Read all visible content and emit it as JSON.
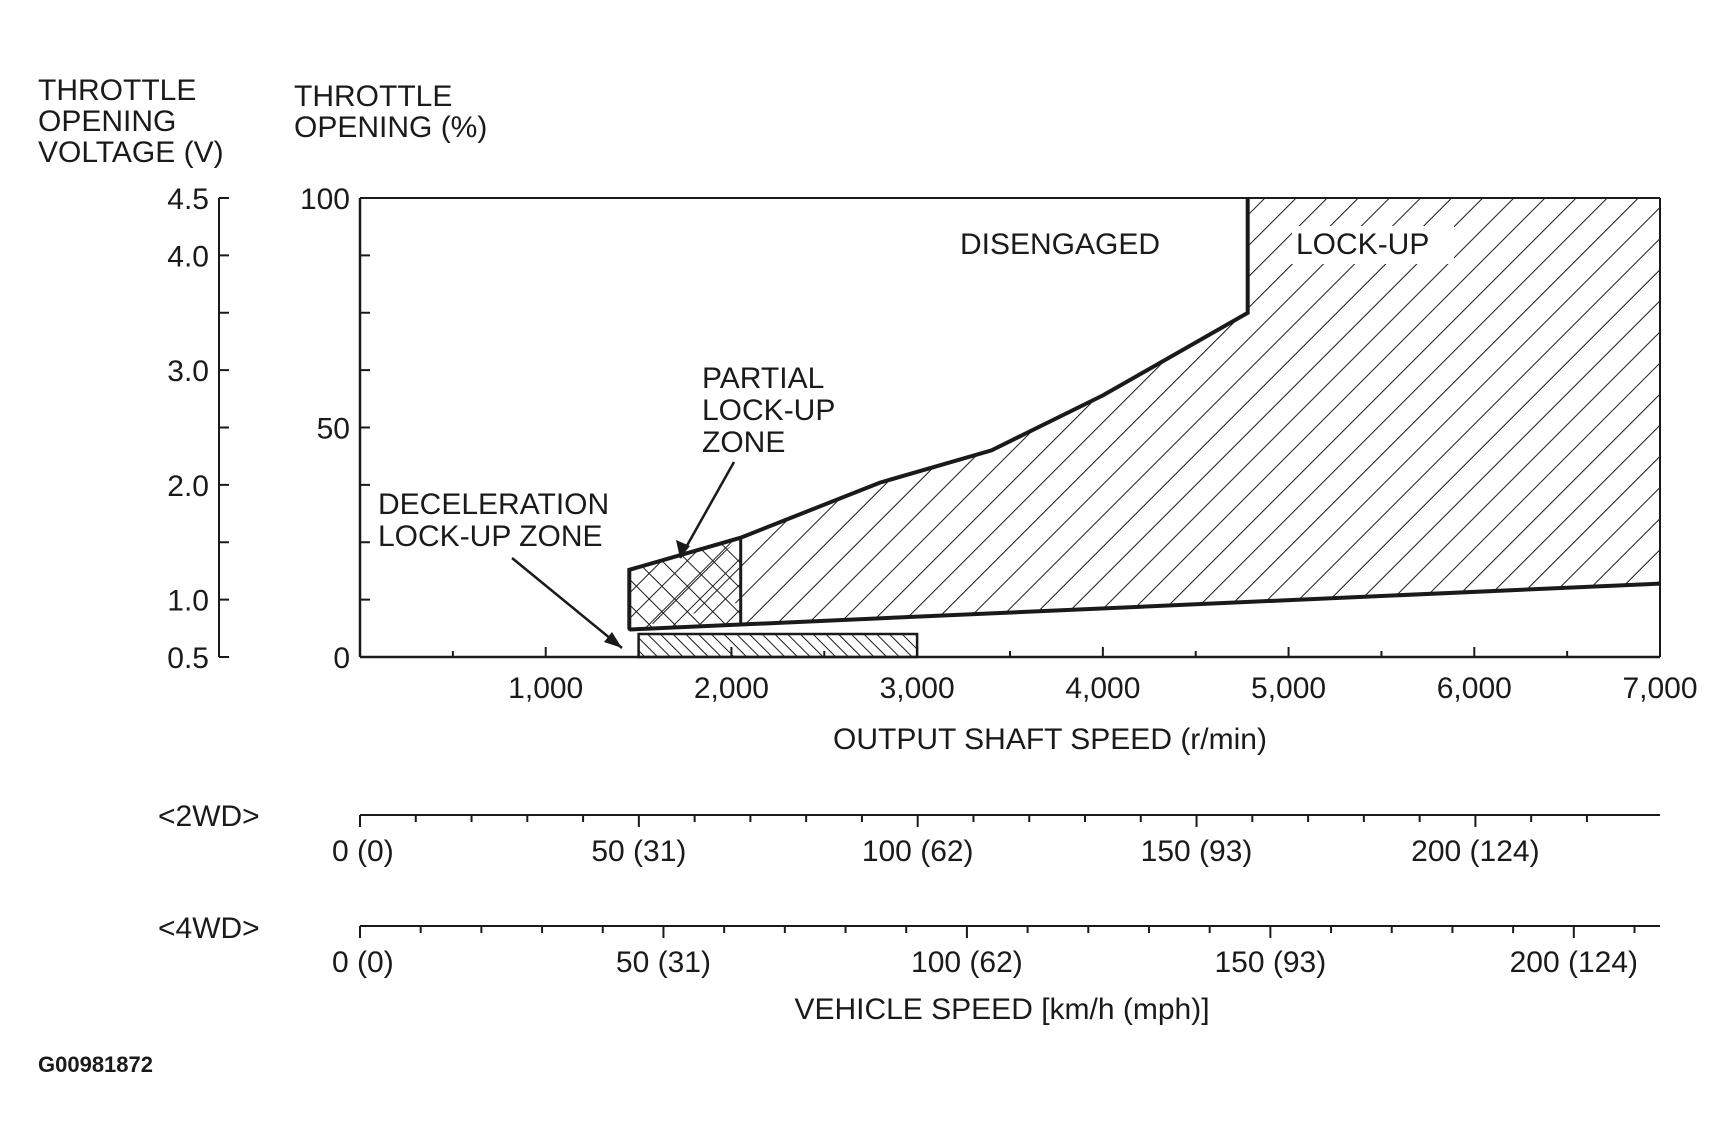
{
  "chart_data": {
    "type": "area",
    "title": "",
    "left_axis_label": [
      "THROTTLE",
      "OPENING",
      "VOLTAGE (V)"
    ],
    "y_axis_label": [
      "THROTTLE",
      "OPENING (%)"
    ],
    "x_axis_label": "OUTPUT SHAFT SPEED (r/min)",
    "xlim": [
      0,
      7000
    ],
    "ylim": [
      0,
      100
    ],
    "x_ticks": [
      {
        "value": 1000,
        "label": "1,000"
      },
      {
        "value": 2000,
        "label": "2,000"
      },
      {
        "value": 3000,
        "label": "3,000"
      },
      {
        "value": 4000,
        "label": "4,000"
      },
      {
        "value": 5000,
        "label": "5,000"
      },
      {
        "value": 6000,
        "label": "6,000"
      },
      {
        "value": 7000,
        "label": "7,000"
      }
    ],
    "y_ticks": [
      {
        "value": 0,
        "label": "0"
      },
      {
        "value": 50,
        "label": "50"
      },
      {
        "value": 100,
        "label": "100"
      }
    ],
    "voltage_ticks": [
      {
        "value": 0.5,
        "label": "0.5",
        "at_percent": 0
      },
      {
        "value": 1.0,
        "label": "1.0",
        "at_percent": 12.5
      },
      {
        "value": 2.0,
        "label": "2.0",
        "at_percent": 37.5
      },
      {
        "value": 3.0,
        "label": "3.0",
        "at_percent": 62.5
      },
      {
        "value": 4.0,
        "label": "4.0",
        "at_percent": 87.5
      },
      {
        "value": 4.5,
        "label": "4.5",
        "at_percent": 100
      }
    ],
    "regions": [
      {
        "name": "LOCK-UP",
        "pattern": "diagonal",
        "polygon": [
          [
            2050,
            12
          ],
          [
            1450,
            6
          ],
          [
            1450,
            6
          ],
          [
            2050,
            26
          ],
          [
            2800,
            38
          ],
          [
            3400,
            45
          ],
          [
            4000,
            57
          ],
          [
            4780,
            75
          ],
          [
            4780,
            100
          ],
          [
            7000,
            100
          ],
          [
            7000,
            16
          ],
          [
            2050,
            7
          ]
        ]
      },
      {
        "name": "PARTIAL LOCK-UP ZONE",
        "pattern": "crosshatch",
        "polygon": [
          [
            1450,
            6
          ],
          [
            1450,
            19
          ],
          [
            2050,
            26
          ],
          [
            2050,
            7
          ]
        ]
      },
      {
        "name": "DECELERATION LOCK-UP ZONE",
        "pattern": "fine-diagonal",
        "polygon": [
          [
            1500,
            0
          ],
          [
            1500,
            5
          ],
          [
            3000,
            5
          ],
          [
            3000,
            0
          ]
        ]
      }
    ],
    "boundary": [
      [
        1450,
        6
      ],
      [
        1450,
        19
      ],
      [
        2050,
        26
      ],
      [
        2800,
        38
      ],
      [
        3400,
        45
      ],
      [
        4000,
        57
      ],
      [
        4780,
        75
      ],
      [
        4780,
        100
      ]
    ],
    "lower_boundary": [
      [
        1450,
        6
      ],
      [
        7000,
        16
      ]
    ],
    "annotations": {
      "disengaged": "DISENGAGED",
      "lockup": "LOCK-UP",
      "partial": [
        "PARTIAL",
        "LOCK-UP",
        "ZONE"
      ],
      "decel": [
        "DECELERATION",
        "LOCK-UP ZONE"
      ]
    },
    "vehicle_speed": {
      "label": "VEHICLE SPEED [km/h (mph)]",
      "scales": [
        {
          "name": "<2WD>",
          "km_per_1000rpm": 33.3,
          "ticks": [
            {
              "value": 0,
              "label": "0 (0)"
            },
            {
              "value": 50,
              "label": "50 (31)"
            },
            {
              "value": 100,
              "label": "100 (62)"
            },
            {
              "value": 150,
              "label": "150 (93)"
            },
            {
              "value": 200,
              "label": "200 (124)"
            }
          ]
        },
        {
          "name": "<4WD>",
          "km_per_1000rpm": 30.6,
          "ticks": [
            {
              "value": 0,
              "label": "0 (0)"
            },
            {
              "value": 50,
              "label": "50 (31)"
            },
            {
              "value": 100,
              "label": "100 (62)"
            },
            {
              "value": 150,
              "label": "150 (93)"
            },
            {
              "value": 200,
              "label": "200 (124)"
            }
          ]
        }
      ]
    },
    "figure_code": "G00981872",
    "colors": {
      "ink": "#1a1a1a",
      "background": "#ffffff"
    }
  }
}
